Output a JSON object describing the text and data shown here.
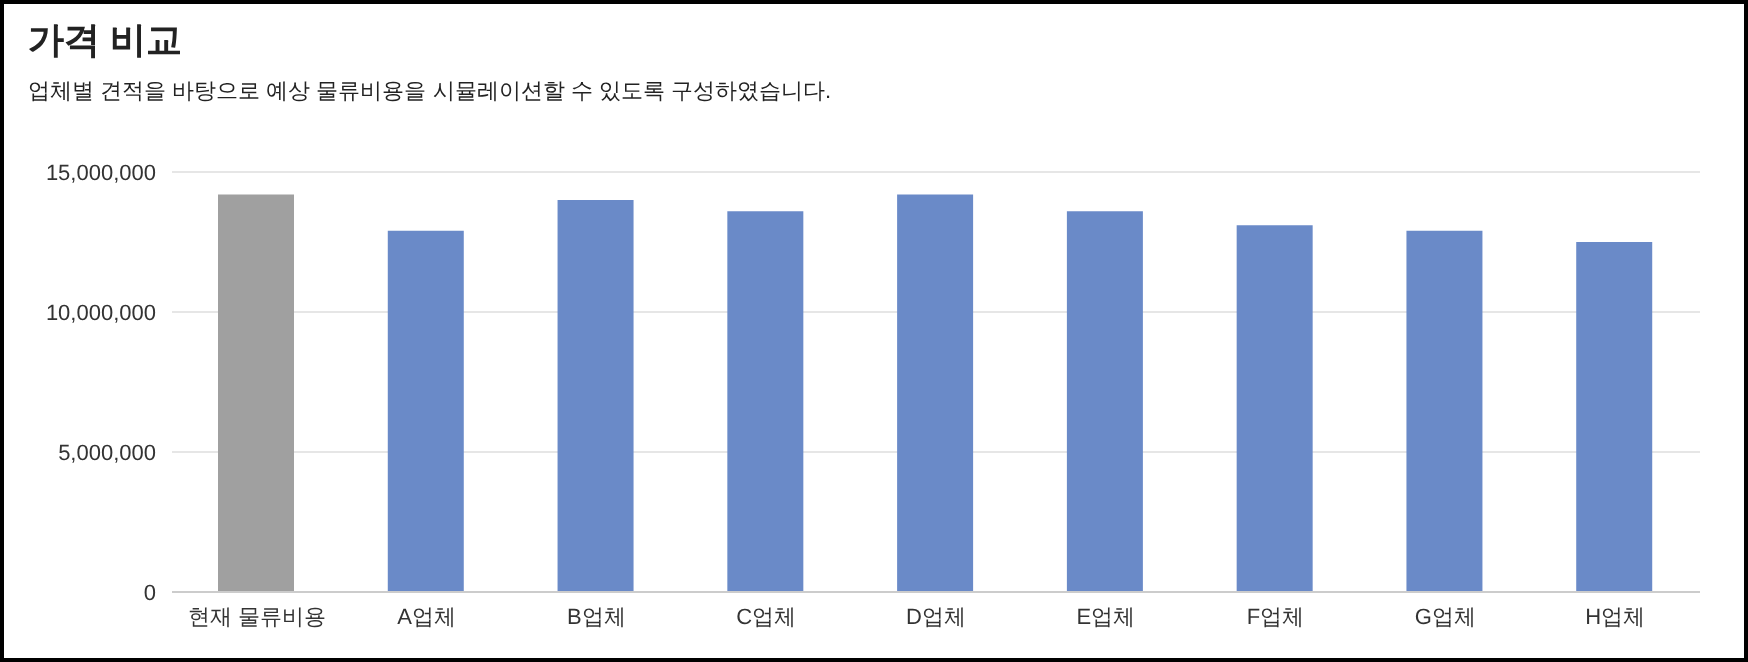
{
  "chart_data": {
    "type": "bar",
    "title": "가격 비교",
    "subtitle": "업체별 견적을 바탕으로 예상 물류비용을 시뮬레이션할 수 있도록 구성하였습니다.",
    "categories": [
      "현재 물류비용",
      "A업체",
      "B업체",
      "C업체",
      "D업체",
      "E업체",
      "F업체",
      "G업체",
      "H업체"
    ],
    "values": [
      14200000,
      12900000,
      14000000,
      13600000,
      14200000,
      13600000,
      13100000,
      12900000,
      12500000
    ],
    "colors": [
      "#a0a0a0",
      "#6a8ac8",
      "#6a8ac8",
      "#6a8ac8",
      "#6a8ac8",
      "#6a8ac8",
      "#6a8ac8",
      "#6a8ac8",
      "#6a8ac8"
    ],
    "ylim": [
      0,
      15000000
    ],
    "yticks": [
      0,
      {
        "value": 5000000,
        "label": "5,000,000"
      },
      {
        "value": 10000000,
        "label": "10,000,000"
      },
      {
        "value": 15000000,
        "label": "15,000,000"
      }
    ],
    "grid": "y"
  }
}
